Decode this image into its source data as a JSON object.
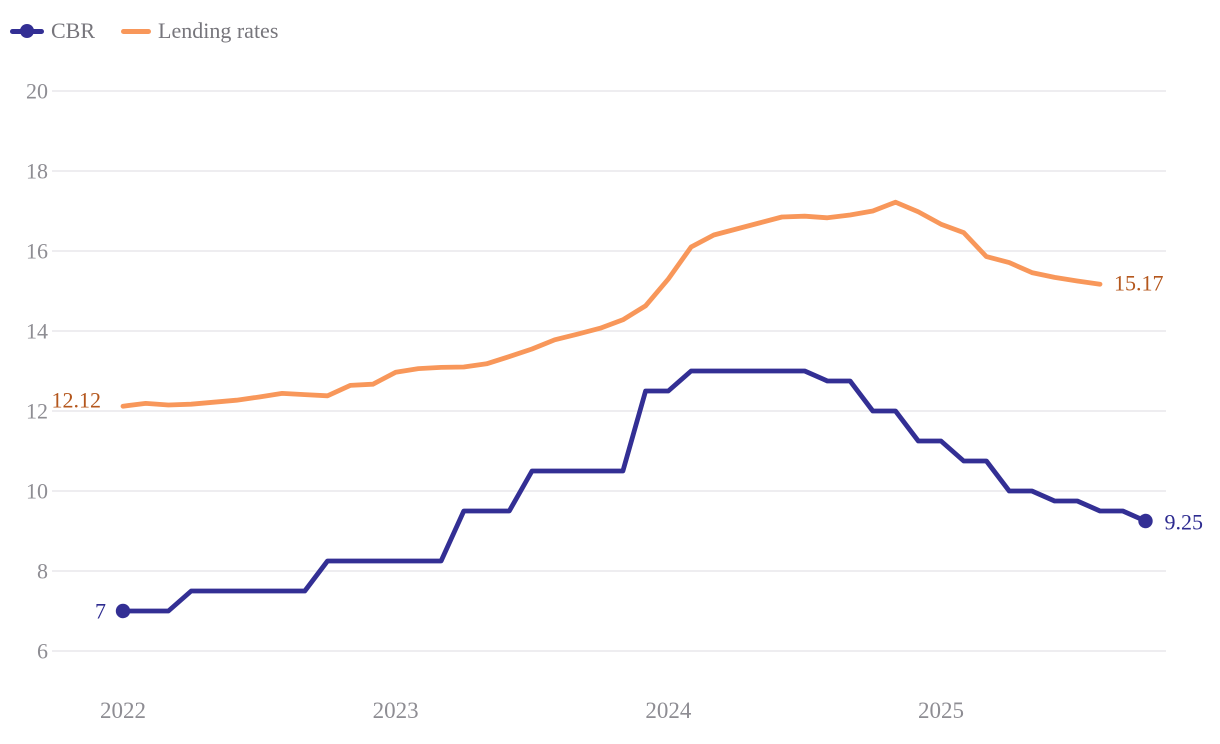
{
  "legend": {
    "position": "top-left",
    "items": [
      {
        "label": "CBR"
      },
      {
        "label": "Lending rates"
      }
    ]
  },
  "chart_data": {
    "type": "line",
    "title": "",
    "xlabel": "",
    "ylabel": "",
    "x_frequency": "monthly",
    "grid": "horizontal",
    "legend_position": "top-left",
    "background_color": "#ffffff",
    "gridline_color": "#e8e7eb",
    "axis_label_color": "#8e8d93",
    "yticks": [
      6,
      8,
      10,
      12,
      14,
      16,
      18,
      20
    ],
    "ylim": [
      6,
      20
    ],
    "xticks": [
      {
        "label": "2022",
        "month_index": 0
      },
      {
        "label": "2023",
        "month_index": 12
      },
      {
        "label": "2024",
        "month_index": 24
      },
      {
        "label": "2025",
        "month_index": 36
      }
    ],
    "months": [
      "2022-01",
      "2022-02",
      "2022-03",
      "2022-04",
      "2022-05",
      "2022-06",
      "2022-07",
      "2022-08",
      "2022-09",
      "2022-10",
      "2022-11",
      "2022-12",
      "2023-01",
      "2023-02",
      "2023-03",
      "2023-04",
      "2023-05",
      "2023-06",
      "2023-07",
      "2023-08",
      "2023-09",
      "2023-10",
      "2023-11",
      "2023-12",
      "2024-01",
      "2024-02",
      "2024-03",
      "2024-04",
      "2024-05",
      "2024-06",
      "2024-07",
      "2024-08",
      "2024-09",
      "2024-10",
      "2024-11",
      "2024-12",
      "2025-01",
      "2025-02",
      "2025-03",
      "2025-04",
      "2025-05",
      "2025-06",
      "2025-07",
      "2025-08",
      "2025-09",
      "2025-10"
    ],
    "series": [
      {
        "name": "CBR",
        "color": "#332f94",
        "label_color": "#2d2b90",
        "start_label": "7",
        "end_label": "9.25",
        "markers": "first-and-last",
        "values": [
          7.0,
          7.0,
          7.0,
          7.5,
          7.5,
          7.5,
          7.5,
          7.5,
          7.5,
          8.25,
          8.25,
          8.25,
          8.25,
          8.25,
          8.25,
          9.5,
          9.5,
          9.5,
          10.5,
          10.5,
          10.5,
          10.5,
          10.5,
          12.5,
          12.5,
          13.0,
          13.0,
          13.0,
          13.0,
          13.0,
          13.0,
          12.75,
          12.75,
          12.0,
          12.0,
          11.25,
          11.25,
          10.75,
          10.75,
          10.0,
          10.0,
          9.75,
          9.75,
          9.5,
          9.5,
          9.25
        ]
      },
      {
        "name": "Lending rates",
        "color": "#f8975a",
        "label_color": "#b4571d",
        "start_label": "12.12",
        "end_label": "15.17",
        "markers": "none",
        "values": [
          12.12,
          12.19,
          12.15,
          12.17,
          12.22,
          12.27,
          12.35,
          12.44,
          12.41,
          12.38,
          12.64,
          12.67,
          12.97,
          13.06,
          13.09,
          13.1,
          13.18,
          13.36,
          13.55,
          13.78,
          13.92,
          14.07,
          14.28,
          14.63,
          15.3,
          16.1,
          16.4,
          16.55,
          16.7,
          16.85,
          16.87,
          16.83,
          16.9,
          17.0,
          17.22,
          16.98,
          16.67,
          16.46,
          15.86,
          15.71,
          15.46,
          15.34,
          15.25,
          15.17
        ]
      }
    ]
  }
}
